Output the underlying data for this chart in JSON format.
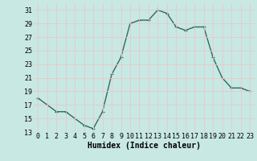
{
  "x": [
    0,
    1,
    2,
    3,
    4,
    5,
    6,
    7,
    8,
    9,
    10,
    11,
    12,
    13,
    14,
    15,
    16,
    17,
    18,
    19,
    20,
    21,
    22,
    23
  ],
  "y": [
    18,
    17,
    16,
    16,
    15,
    14,
    13.5,
    16,
    21.5,
    24,
    29,
    29.5,
    29.5,
    31,
    30.5,
    28.5,
    28,
    28.5,
    28.5,
    24,
    21,
    19.5,
    19.5,
    19
  ],
  "line_color": "#2d6b5e",
  "marker": "+",
  "marker_size": 3,
  "marker_linewidth": 0.8,
  "background_color": "#c8e8e3",
  "grid_color": "#e8c8c8",
  "xlabel": "Humidex (Indice chaleur)",
  "ylim": [
    13,
    32
  ],
  "xlim": [
    -0.5,
    23.5
  ],
  "yticks": [
    13,
    15,
    17,
    19,
    21,
    23,
    25,
    27,
    29,
    31
  ],
  "xticks": [
    0,
    1,
    2,
    3,
    4,
    5,
    6,
    7,
    8,
    9,
    10,
    11,
    12,
    13,
    14,
    15,
    16,
    17,
    18,
    19,
    20,
    21,
    22,
    23
  ],
  "xlabel_fontsize": 7,
  "tick_fontsize": 6,
  "line_width": 1.0
}
